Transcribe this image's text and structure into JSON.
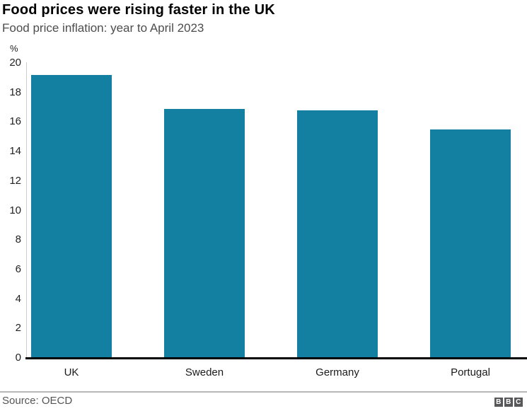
{
  "header": {
    "title": "Food prices were rising faster in the UK",
    "subtitle": "Food price inflation: year to April 2023"
  },
  "chart_data": {
    "type": "bar",
    "title": "Food prices were rising faster in the UK",
    "subtitle": "Food price inflation: year to April 2023",
    "unit_label": "%",
    "categories": [
      "UK",
      "Sweden",
      "Germany",
      "Portugal"
    ],
    "values": [
      19.2,
      16.9,
      16.8,
      15.5
    ],
    "ylim": [
      0,
      20
    ],
    "ytick_step": 2,
    "ytick_labels": [
      "0",
      "2",
      "4",
      "6",
      "8",
      "10",
      "12",
      "14",
      "16",
      "18",
      "20"
    ],
    "grid": false,
    "legend": "none",
    "bar_color": "#1380A1",
    "axis_line_color": "#cccccc",
    "baseline_color": "#000000"
  },
  "footer": {
    "source_label": "Source: OECD",
    "logo_letters": [
      "B",
      "B",
      "C"
    ]
  },
  "colors": {
    "accent": "#1380A1",
    "title_text": "#000000",
    "subtitle_text": "#4d4d4d",
    "footer_divider": "#b8b8b8",
    "logo_block": "#58585a"
  }
}
